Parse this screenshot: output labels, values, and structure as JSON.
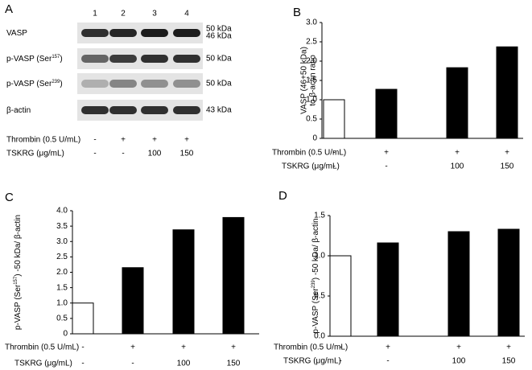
{
  "panel_labels": [
    "A",
    "B",
    "C",
    "D"
  ],
  "blot": {
    "lanes": [
      "1",
      "2",
      "3",
      "4"
    ],
    "rows": [
      {
        "label_parts": [
          "VASP"
        ],
        "kda": [
          "50 kDa",
          "46 kDa"
        ]
      },
      {
        "label_parts": [
          "p-VASP (Ser",
          "157",
          ")"
        ],
        "kda": [
          "50 kDa"
        ]
      },
      {
        "label_parts": [
          "p-VASP (Ser",
          "239",
          ")"
        ],
        "kda": [
          "50 kDa"
        ]
      },
      {
        "label_parts": [
          "β-actin"
        ],
        "kda": [
          "43 kDa"
        ]
      }
    ],
    "conditions": [
      {
        "label": "Thrombin (0.5 U/mL)",
        "values": [
          "-",
          "+",
          "+",
          "+"
        ]
      },
      {
        "label": "TSKRG (μg/mL)",
        "values": [
          "-",
          "-",
          "100",
          "150"
        ]
      }
    ]
  },
  "chart_data": [
    {
      "type": "bar",
      "ylabel": [
        "VASP (46+50 kDa)",
        "to β-actin ratio"
      ],
      "values": [
        1.0,
        1.27,
        1.83,
        2.37
      ],
      "colors": [
        "#ffffff",
        "#000000",
        "#000000",
        "#000000"
      ],
      "ylim": [
        0,
        3
      ],
      "yticks": [
        0,
        0.5,
        {
          "value": 1,
          "label": "1.0"
        },
        1.5,
        {
          "value": 2,
          "label": "2.0"
        },
        2.5,
        {
          "value": 3,
          "label": "3.0"
        }
      ],
      "conditions": [
        {
          "label": "Thrombin (0.5 U/mL)",
          "values": [
            "-",
            "+",
            "+",
            "+"
          ]
        },
        {
          "label": "TSKRG (μg/mL)",
          "values": [
            "-",
            "-",
            "100",
            "150"
          ]
        }
      ]
    },
    {
      "type": "bar",
      "ylabel_parts": [
        "p-VASP (Ser",
        "157",
        ") -50 kDa/ β-actin"
      ],
      "values": [
        1.0,
        2.15,
        3.38,
        3.78
      ],
      "colors": [
        "#ffffff",
        "#000000",
        "#000000",
        "#000000"
      ],
      "ylim": [
        0,
        4
      ],
      "yticks": [
        0,
        0.5,
        {
          "value": 1,
          "label": "1.0"
        },
        1.5,
        {
          "value": 2,
          "label": "2.0"
        },
        2.5,
        {
          "value": 3,
          "label": "3.0"
        },
        3.5,
        {
          "value": 4,
          "label": "4.0"
        }
      ],
      "conditions": [
        {
          "label": "Thrombin (0.5 U/mL)",
          "values": [
            "-",
            "+",
            "+",
            "+"
          ]
        },
        {
          "label": "TSKRG (μg/mL)",
          "values": [
            "-",
            "-",
            "100",
            "150"
          ]
        }
      ]
    },
    {
      "type": "bar",
      "ylabel_parts": [
        "p-VASP (Ser",
        "239",
        ") -50 kDa/ β-actin"
      ],
      "values": [
        1.0,
        1.16,
        1.3,
        1.33
      ],
      "colors": [
        "#ffffff",
        "#000000",
        "#000000",
        "#000000"
      ],
      "ylim": [
        0,
        1.5
      ],
      "yticks": [
        {
          "value": 0,
          "label": "0.0"
        },
        0.5,
        {
          "value": 1,
          "label": "1.0"
        },
        1.5
      ],
      "conditions": [
        {
          "label": "Thrombin (0.5 U/mL)",
          "values": [
            "-",
            "+",
            "+",
            "+"
          ]
        },
        {
          "label": "TSKRG (μg/mL)",
          "values": [
            "-",
            "-",
            "100",
            "150"
          ]
        }
      ]
    }
  ]
}
